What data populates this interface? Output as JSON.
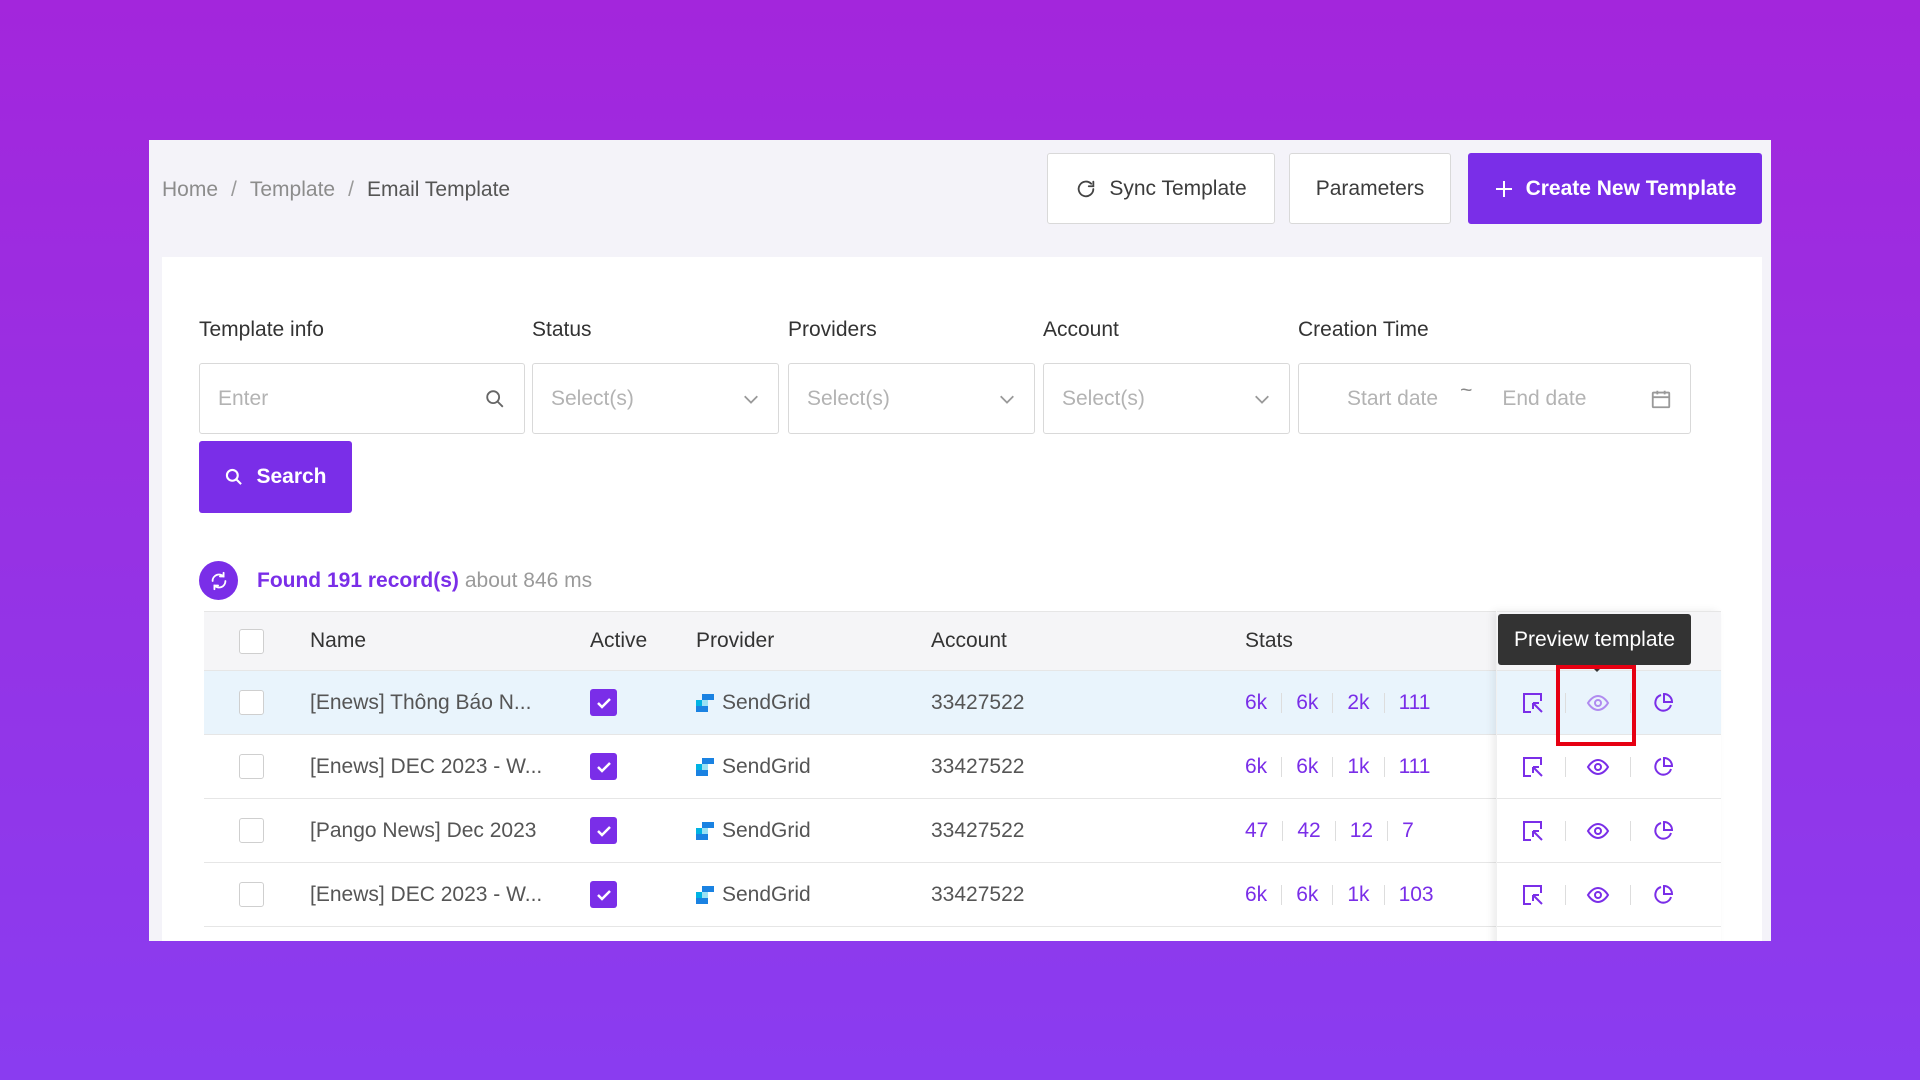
{
  "breadcrumb": [
    "Home",
    "Template",
    "Email Template"
  ],
  "toolbar": {
    "sync_label": "Sync Template",
    "params_label": "Parameters",
    "create_label": "Create New Template"
  },
  "filters": {
    "template_info": {
      "label": "Template info",
      "placeholder": "Enter"
    },
    "status": {
      "label": "Status",
      "placeholder": "Select(s)"
    },
    "providers": {
      "label": "Providers",
      "placeholder": "Select(s)"
    },
    "account": {
      "label": "Account",
      "placeholder": "Select(s)"
    },
    "creation_time": {
      "label": "Creation Time",
      "start": "Start date",
      "sep": "~",
      "end": "End date"
    },
    "search_label": "Search"
  },
  "results": {
    "found": "Found 191 record(s)",
    "time": "about 846 ms"
  },
  "table": {
    "headers": {
      "name": "Name",
      "active": "Active",
      "provider": "Provider",
      "account": "Account",
      "stats": "Stats"
    },
    "rows": [
      {
        "name": "[Enews] Thông Báo N...",
        "provider": "SendGrid",
        "account": "33427522",
        "stats": [
          "6k",
          "6k",
          "2k",
          "111"
        ]
      },
      {
        "name": "[Enews] DEC 2023 - W...",
        "provider": "SendGrid",
        "account": "33427522",
        "stats": [
          "6k",
          "6k",
          "1k",
          "111"
        ]
      },
      {
        "name": "[Pango News] Dec 2023",
        "provider": "SendGrid",
        "account": "33427522",
        "stats": [
          "47",
          "42",
          "12",
          "7"
        ]
      },
      {
        "name": "[Enews] DEC 2023 - W...",
        "provider": "SendGrid",
        "account": "33427522",
        "stats": [
          "6k",
          "6k",
          "1k",
          "103"
        ]
      }
    ]
  },
  "tooltip": "Preview template",
  "colors": {
    "accent": "#7a2ee8",
    "highlight": "#e60012",
    "row_hover": "#e9f4fc"
  }
}
